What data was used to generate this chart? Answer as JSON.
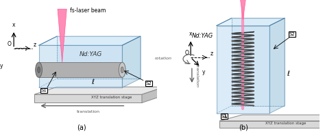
{
  "bg_color": "#ffffff",
  "label_a": "(a)",
  "label_b": "(b)",
  "title_a": "Nd:YAG",
  "title_b": "Nd:YAG",
  "laser_label": "fs-laser beam",
  "s1_label": "S1",
  "s2_label": "S2",
  "ell_label": "ℓ",
  "xyz_label": "XYZ translation stage",
  "translation_label": "translation",
  "translation_label_b": "translation",
  "rotation_label": "rotation",
  "x_label": "x",
  "y_label": "y",
  "z_label": "z",
  "o_label": "O"
}
